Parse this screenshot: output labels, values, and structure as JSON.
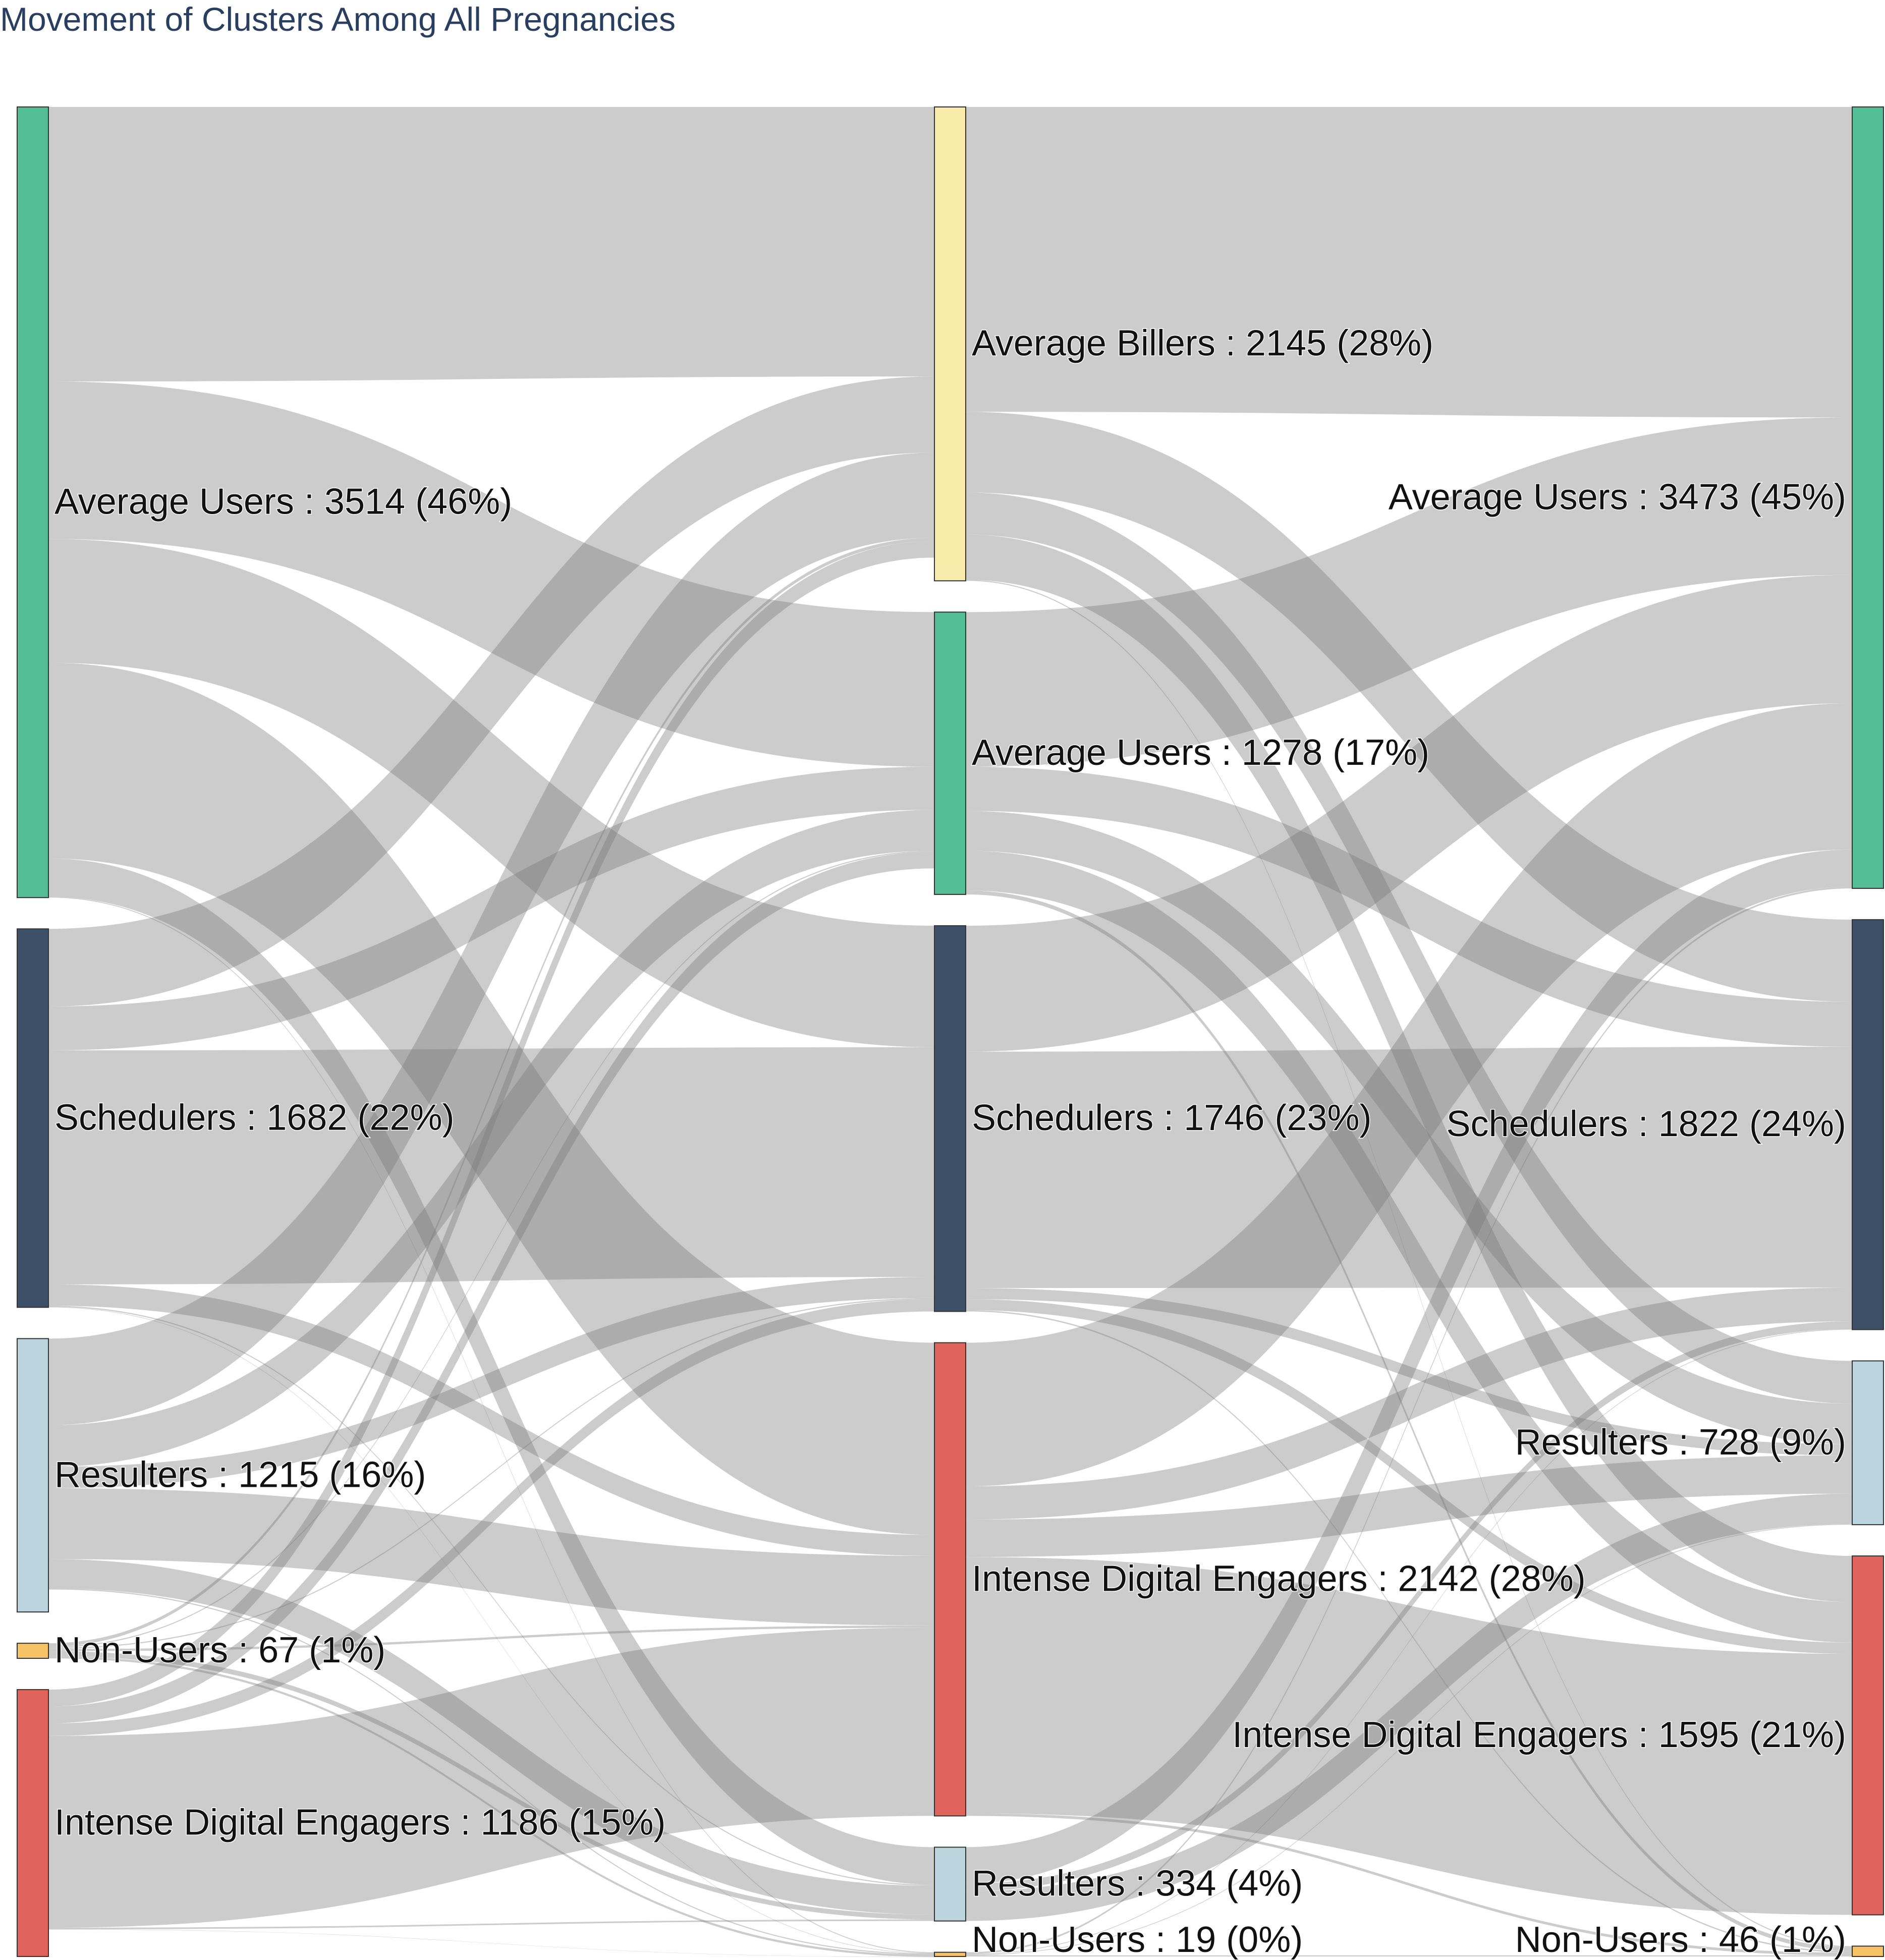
{
  "chart_data": {
    "type": "sankey",
    "title": "Movement of Clusters Among All Pregnancies",
    "columns": [
      {
        "nodes": [
          {
            "id": "A0",
            "name": "Average Users",
            "label": "Average Users : 3514 (46%)",
            "value": 3514,
            "color": "#52bd96"
          },
          {
            "id": "S0",
            "name": "Schedulers",
            "label": "Schedulers : 1682 (22%)",
            "value": 1682,
            "color": "#3e5068"
          },
          {
            "id": "R0",
            "name": "Resulters",
            "label": "Resulters : 1215 (16%)",
            "value": 1215,
            "color": "#bcd4dd"
          },
          {
            "id": "N0",
            "name": "Non-Users",
            "label": "Non-Users : 67 (1%)",
            "value": 67,
            "color": "#f6c366"
          },
          {
            "id": "I0",
            "name": "Intense Digital Engagers",
            "label": "Intense Digital Engagers : 1186 (15%)",
            "value": 1186,
            "color": "#e0645c"
          }
        ]
      },
      {
        "nodes": [
          {
            "id": "B1",
            "name": "Average Billers",
            "label": "Average Billers : 2145 (28%)",
            "value": 2145,
            "color": "#f8eaa8"
          },
          {
            "id": "A1",
            "name": "Average Users",
            "label": "Average Users : 1278 (17%)",
            "value": 1278,
            "color": "#52bd96"
          },
          {
            "id": "S1",
            "name": "Schedulers",
            "label": "Schedulers : 1746 (23%)",
            "value": 1746,
            "color": "#3e5068"
          },
          {
            "id": "I1",
            "name": "Intense Digital Engagers",
            "label": "Intense Digital Engagers : 2142 (28%)",
            "value": 2142,
            "color": "#e0645c"
          },
          {
            "id": "R1",
            "name": "Resulters",
            "label": "Resulters : 334 (4%)",
            "value": 334,
            "color": "#bcd4dd"
          },
          {
            "id": "N1",
            "name": "Non-Users",
            "label": "Non-Users : 19 (0%)",
            "value": 19,
            "color": "#f6c366"
          }
        ]
      },
      {
        "nodes": [
          {
            "id": "A2",
            "name": "Average Users",
            "label": "Average Users : 3473 (45%)",
            "value": 3473,
            "color": "#52bd96"
          },
          {
            "id": "S2",
            "name": "Schedulers",
            "label": "Schedulers : 1822 (24%)",
            "value": 1822,
            "color": "#3e5068"
          },
          {
            "id": "R2",
            "name": "Resulters",
            "label": "Resulters : 728 (9%)",
            "value": 728,
            "color": "#bcd4dd"
          },
          {
            "id": "I2",
            "name": "Intense Digital Engagers",
            "label": "Intense Digital Engagers : 1595 (21%)",
            "value": 1595,
            "color": "#e0645c"
          },
          {
            "id": "N2",
            "name": "Non-Users",
            "label": "Non-Users : 46 (1%)",
            "value": 46,
            "color": "#f6c366"
          }
        ]
      }
    ],
    "links": [
      {
        "source": "A0",
        "target": "B1",
        "value": 1220
      },
      {
        "source": "A0",
        "target": "A1",
        "value": 700
      },
      {
        "source": "A0",
        "target": "S1",
        "value": 550
      },
      {
        "source": "A0",
        "target": "I1",
        "value": 870
      },
      {
        "source": "A0",
        "target": "R1",
        "value": 170
      },
      {
        "source": "A0",
        "target": "N1",
        "value": 4
      },
      {
        "source": "S0",
        "target": "B1",
        "value": 345
      },
      {
        "source": "S0",
        "target": "A1",
        "value": 195
      },
      {
        "source": "S0",
        "target": "S1",
        "value": 1040
      },
      {
        "source": "S0",
        "target": "I1",
        "value": 95
      },
      {
        "source": "S0",
        "target": "R1",
        "value": 5
      },
      {
        "source": "S0",
        "target": "N1",
        "value": 2
      },
      {
        "source": "R0",
        "target": "B1",
        "value": 385
      },
      {
        "source": "R0",
        "target": "A1",
        "value": 185
      },
      {
        "source": "R0",
        "target": "S1",
        "value": 95
      },
      {
        "source": "R0",
        "target": "I1",
        "value": 315
      },
      {
        "source": "R0",
        "target": "R1",
        "value": 130
      },
      {
        "source": "R0",
        "target": "N1",
        "value": 5
      },
      {
        "source": "N0",
        "target": "B1",
        "value": 15
      },
      {
        "source": "N0",
        "target": "A1",
        "value": 5
      },
      {
        "source": "N0",
        "target": "S1",
        "value": 5
      },
      {
        "source": "N0",
        "target": "I1",
        "value": 10
      },
      {
        "source": "N0",
        "target": "R1",
        "value": 22
      },
      {
        "source": "N0",
        "target": "N1",
        "value": 10
      },
      {
        "source": "I0",
        "target": "B1",
        "value": 75
      },
      {
        "source": "I0",
        "target": "A1",
        "value": 75
      },
      {
        "source": "I0",
        "target": "S1",
        "value": 56
      },
      {
        "source": "I0",
        "target": "I1",
        "value": 852
      },
      {
        "source": "I0",
        "target": "R1",
        "value": 7
      },
      {
        "source": "I0",
        "target": "N1",
        "value": 1
      },
      {
        "source": "B1",
        "target": "A2",
        "value": 1380
      },
      {
        "source": "B1",
        "target": "S2",
        "value": 365
      },
      {
        "source": "B1",
        "target": "R2",
        "value": 190
      },
      {
        "source": "B1",
        "target": "I2",
        "value": 205
      },
      {
        "source": "B1",
        "target": "N2",
        "value": 5
      },
      {
        "source": "A1",
        "target": "A2",
        "value": 700
      },
      {
        "source": "A1",
        "target": "S2",
        "value": 200
      },
      {
        "source": "A1",
        "target": "R2",
        "value": 180
      },
      {
        "source": "A1",
        "target": "I2",
        "value": 180
      },
      {
        "source": "A1",
        "target": "N2",
        "value": 18
      },
      {
        "source": "S1",
        "target": "A2",
        "value": 570
      },
      {
        "source": "S1",
        "target": "S2",
        "value": 1070
      },
      {
        "source": "S1",
        "target": "R2",
        "value": 50
      },
      {
        "source": "S1",
        "target": "I2",
        "value": 50
      },
      {
        "source": "S1",
        "target": "N2",
        "value": 6
      },
      {
        "source": "I1",
        "target": "A2",
        "value": 650
      },
      {
        "source": "I1",
        "target": "S2",
        "value": 150
      },
      {
        "source": "I1",
        "target": "R2",
        "value": 170
      },
      {
        "source": "I1",
        "target": "I2",
        "value": 1160
      },
      {
        "source": "I1",
        "target": "N2",
        "value": 12
      },
      {
        "source": "R1",
        "target": "A2",
        "value": 165
      },
      {
        "source": "R1",
        "target": "S2",
        "value": 34
      },
      {
        "source": "R1",
        "target": "R2",
        "value": 135
      },
      {
        "source": "N1",
        "target": "A2",
        "value": 8
      },
      {
        "source": "N1",
        "target": "S2",
        "value": 3
      },
      {
        "source": "N1",
        "target": "R2",
        "value": 3
      },
      {
        "source": "N1",
        "target": "N2",
        "value": 5
      }
    ]
  }
}
